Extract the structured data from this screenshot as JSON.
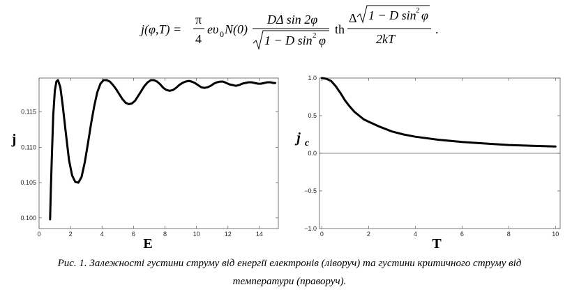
{
  "formula": {
    "lhs": "j(φ,T) =",
    "pi": "π",
    "four": "4",
    "mid": "eυ",
    "mid_sub": "0",
    "mid2": "N(0)",
    "num1": "DΔ sin 2φ",
    "den1_rad": "1 − D sin",
    "den1_exp": "2",
    "den1_end": "φ",
    "th": "th",
    "num2_pre": "Δ",
    "num2_rad": "1 − D sin",
    "num2_exp": "2",
    "num2_end": "φ",
    "den2": "2kT",
    "period": "."
  },
  "chart_data": [
    {
      "type": "line",
      "title": "",
      "xlabel": "E",
      "ylabel": "j",
      "xlim": [
        0,
        15.2
      ],
      "ylim": [
        0.0985,
        0.1198
      ],
      "xticks": [
        0,
        2,
        4,
        6,
        8,
        10,
        12,
        14
      ],
      "yticks": [
        0.1,
        0.105,
        0.11,
        0.115
      ],
      "ytick_labels": [
        "0.100",
        "0.105",
        "0.110",
        "0.115"
      ],
      "grid": false,
      "series": [
        {
          "x": [
            0.7,
            0.75,
            0.8,
            0.9,
            1.0,
            1.1,
            1.2,
            1.35,
            1.5,
            1.7,
            1.9,
            2.1,
            2.3,
            2.5,
            2.7,
            2.9,
            3.1,
            3.3,
            3.5,
            3.7,
            3.9,
            4.1,
            4.3,
            4.5,
            4.7,
            4.9,
            5.1,
            5.3,
            5.5,
            5.7,
            5.9,
            6.1,
            6.3,
            6.5,
            6.7,
            6.9,
            7.1,
            7.3,
            7.5,
            7.7,
            7.9,
            8.1,
            8.3,
            8.5,
            8.7,
            8.9,
            9.1,
            9.3,
            9.5,
            9.7,
            9.9,
            10.1,
            10.3,
            10.5,
            10.7,
            10.9,
            11.1,
            11.3,
            11.5,
            11.7,
            11.9,
            12.1,
            12.3,
            12.5,
            12.7,
            12.9,
            13.1,
            13.3,
            13.5,
            13.7,
            13.9,
            14.1,
            14.3,
            14.5,
            14.7,
            14.9,
            15.0
          ],
          "y": [
            0.0998,
            0.104,
            0.108,
            0.1145,
            0.118,
            0.1193,
            0.1195,
            0.1185,
            0.116,
            0.112,
            0.1082,
            0.106,
            0.1051,
            0.105,
            0.1058,
            0.1078,
            0.1105,
            0.1133,
            0.1158,
            0.1178,
            0.119,
            0.1195,
            0.1195,
            0.1193,
            0.1188,
            0.1182,
            0.1175,
            0.1168,
            0.1163,
            0.1161,
            0.1162,
            0.1166,
            0.1173,
            0.118,
            0.1187,
            0.1192,
            0.1195,
            0.1195,
            0.1193,
            0.1189,
            0.1184,
            0.1181,
            0.118,
            0.1181,
            0.1184,
            0.1188,
            0.1191,
            0.1193,
            0.1194,
            0.1193,
            0.1191,
            0.1188,
            0.1185,
            0.1184,
            0.1185,
            0.1187,
            0.119,
            0.1192,
            0.1193,
            0.1193,
            0.1191,
            0.1189,
            0.1188,
            0.1187,
            0.1188,
            0.119,
            0.1191,
            0.1192,
            0.1192,
            0.1191,
            0.119,
            0.119,
            0.1191,
            0.1192,
            0.1192,
            0.1191,
            0.1191
          ]
        }
      ]
    },
    {
      "type": "line",
      "title": "",
      "xlabel": "T",
      "ylabel": "j",
      "ylabel_sub": "c",
      "xlim": [
        -0.1,
        10.2
      ],
      "ylim": [
        -1.0,
        1.0
      ],
      "xticks": [
        0,
        2,
        4,
        6,
        8,
        10
      ],
      "yticks": [
        -1.0,
        -0.5,
        0.0,
        0.5,
        1.0
      ],
      "ytick_labels": [
        "−1.0",
        "−0.5",
        "0.0",
        "0.5",
        "1.0"
      ],
      "grid": false,
      "zero_line": true,
      "series": [
        {
          "x": [
            0.0,
            0.2,
            0.4,
            0.6,
            0.8,
            1.0,
            1.2,
            1.4,
            1.6,
            1.8,
            2.0,
            2.5,
            3.0,
            3.5,
            4.0,
            5.0,
            6.0,
            7.0,
            8.0,
            9.0,
            10.0
          ],
          "y": [
            1.0,
            0.99,
            0.96,
            0.89,
            0.8,
            0.7,
            0.62,
            0.55,
            0.5,
            0.45,
            0.42,
            0.35,
            0.29,
            0.25,
            0.22,
            0.18,
            0.15,
            0.13,
            0.11,
            0.1,
            0.09
          ]
        }
      ]
    }
  ],
  "caption_line1": "Рис. 1. Залежності густини струму від енергії електронів (ліворуч) та густини критичного струму від",
  "caption_line2": "температури (праворуч)."
}
